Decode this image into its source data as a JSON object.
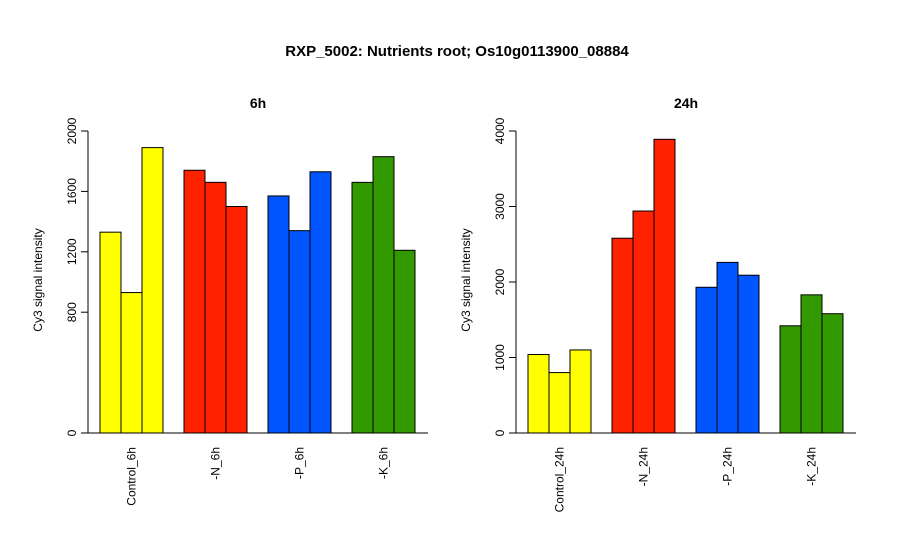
{
  "title": "RXP_5002: Nutrients root; Os10g0113900_08884",
  "chart_data": [
    {
      "type": "bar",
      "title": "6h",
      "ylabel": "Cy3 signal intensity",
      "ylim": [
        0,
        2000
      ],
      "yticks": [
        0,
        800,
        1200,
        1600,
        2000
      ],
      "categories": [
        "Control_6h",
        "-N_6h",
        "-P_6h",
        "-K_6h"
      ],
      "colors": [
        "#ffff00",
        "#ff2200",
        "#0055ff",
        "#339900"
      ],
      "values": [
        [
          1330,
          930,
          1890
        ],
        [
          1740,
          1660,
          1500
        ],
        [
          1570,
          1340,
          1730
        ],
        [
          1660,
          1830,
          1210
        ]
      ]
    },
    {
      "type": "bar",
      "title": "24h",
      "ylabel": "Cy3 signal intensity",
      "ylim": [
        0,
        4000
      ],
      "yticks": [
        0,
        1000,
        2000,
        3000,
        4000
      ],
      "categories": [
        "Control_24h",
        "-N_24h",
        "-P_24h",
        "-K_24h"
      ],
      "colors": [
        "#ffff00",
        "#ff2200",
        "#0055ff",
        "#339900"
      ],
      "values": [
        [
          1040,
          800,
          1100
        ],
        [
          2580,
          2940,
          3890
        ],
        [
          1930,
          2260,
          2090
        ],
        [
          1420,
          1830,
          1580
        ]
      ]
    }
  ]
}
